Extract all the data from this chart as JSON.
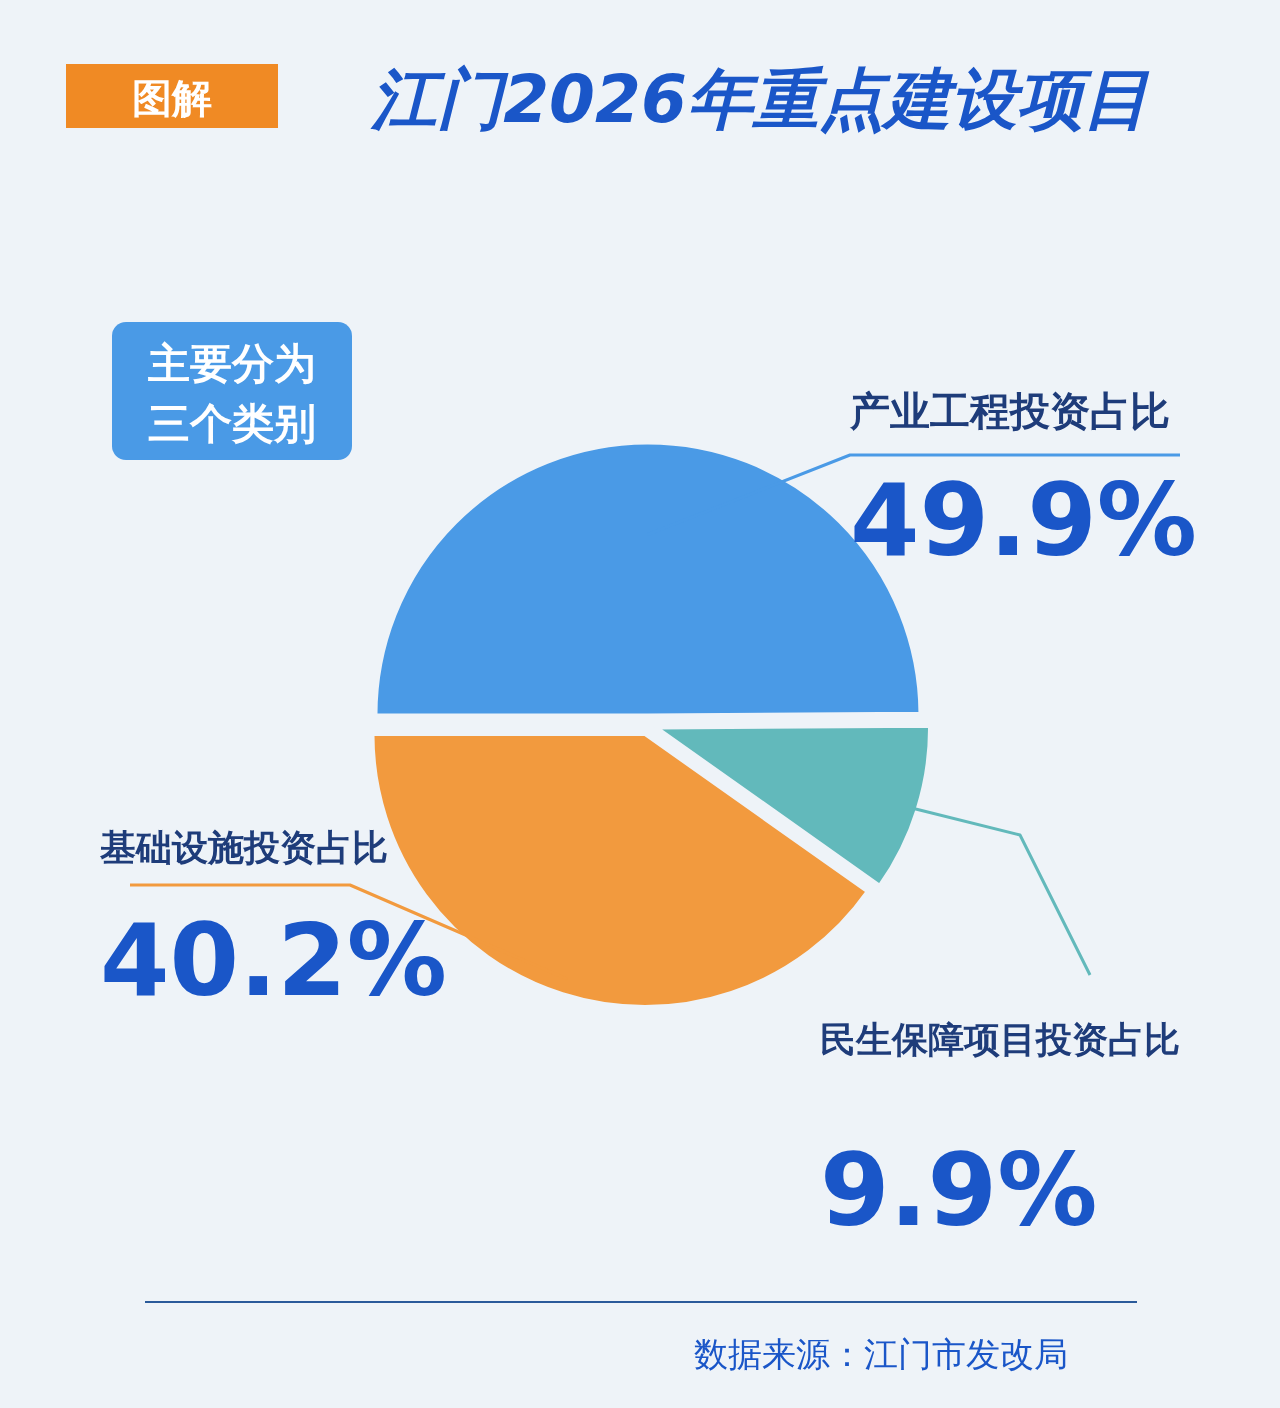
{
  "chart_data": {
    "type": "pie",
    "title": "江门2026年重点建设项目",
    "categories": [
      "产业工程投资占比",
      "民生保障项目投资占比",
      "基础设施投资占比"
    ],
    "values": [
      49.9,
      9.9,
      40.2
    ],
    "colors": [
      "#4a9ae6",
      "#62b9bb",
      "#f29a3e"
    ],
    "value_labels": [
      "49.9%",
      "9.9%",
      "40.2%"
    ],
    "annotations": [
      "图解",
      "主要分为三个类别",
      "数据来源：江门市发改局"
    ]
  }
}
